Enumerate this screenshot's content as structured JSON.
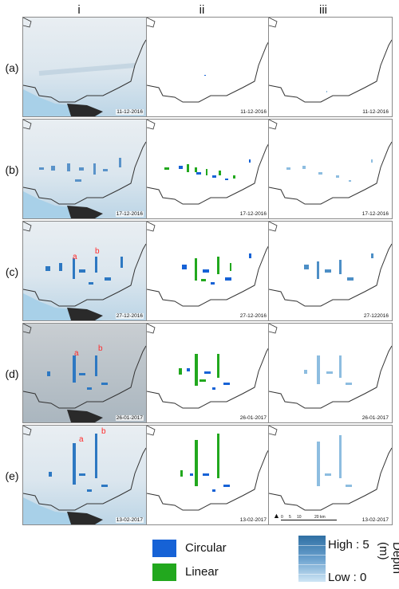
{
  "columns": [
    "i",
    "ii",
    "iii"
  ],
  "rows": [
    {
      "label": "(a)",
      "date": "11-12-2016",
      "date_ii": "11-12-2016",
      "date_iii": "11-12-2016"
    },
    {
      "label": "(b)",
      "date": "17-12-2016",
      "date_ii": "17-12-2016",
      "date_iii": "17-12-2016"
    },
    {
      "label": "(c)",
      "date": "27-12-2016",
      "date_ii": "27-12-2016",
      "date_iii": "27-122016"
    },
    {
      "label": "(d)",
      "date": "26-01-2017",
      "date_ii": "26-01-2017",
      "date_iii": "26-01-2017"
    },
    {
      "label": "(e)",
      "date": "13-02-2017",
      "date_ii": "13-02-2017",
      "date_iii": "13-02-2017"
    }
  ],
  "markers": {
    "a": "a",
    "b": "b"
  },
  "legend": {
    "circular": "Circular",
    "linear": "Linear",
    "depth_high": "High : 5",
    "depth_low": "Low : 0",
    "depth_title": "Depth (m)"
  },
  "scale_bar": {
    "zero": "0",
    "five": "5",
    "ten": "10",
    "twenty": "20 km"
  },
  "colors": {
    "circular": "#1662d6",
    "linear": "#22a81e",
    "depth_dark": "#2f6fa3",
    "depth_light": "#cfe6f5"
  }
}
